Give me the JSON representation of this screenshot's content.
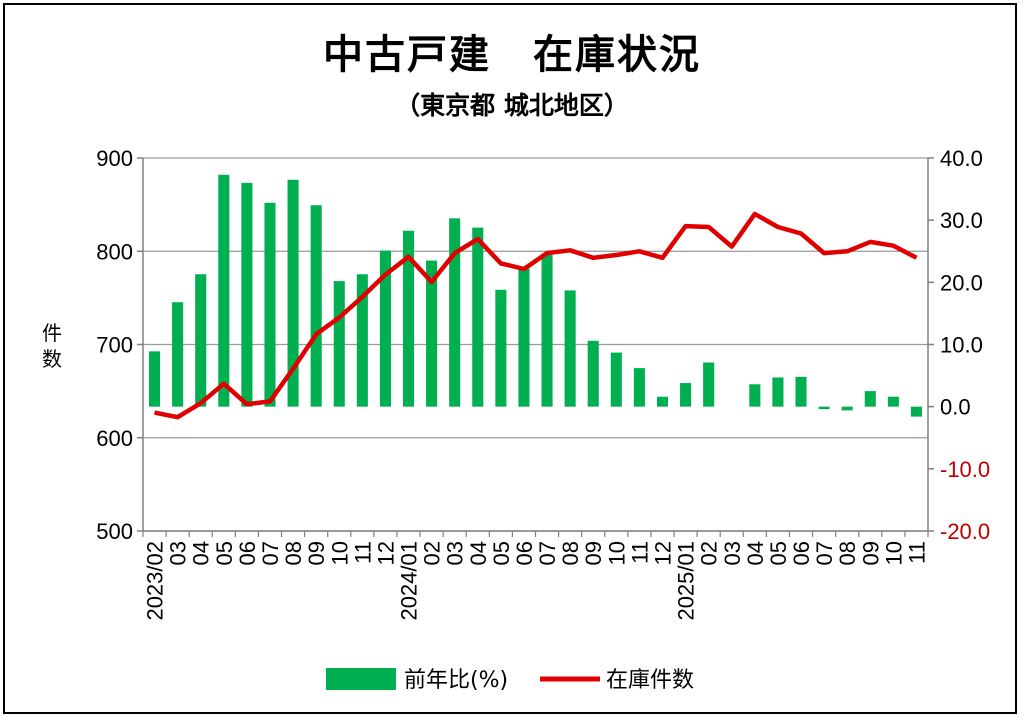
{
  "chart_data": {
    "type": "bar+line",
    "title": "中古戸建　在庫状況",
    "subtitle": "（東京都 城北地区）",
    "left_axis": {
      "label": "件数",
      "ylim": [
        500,
        900
      ],
      "ticks": [
        "500",
        "600",
        "700",
        "800",
        "900"
      ]
    },
    "right_axis": {
      "ylim": [
        -20,
        40
      ],
      "ticks": [
        "-20.0",
        "-10.0",
        "0.0",
        "10.0",
        "20.0",
        "30.0",
        "40.0"
      ]
    },
    "x_labels": [
      "2023/02",
      "03",
      "04",
      "05",
      "06",
      "07",
      "08",
      "09",
      "10",
      "11",
      "12",
      "2024/01",
      "02",
      "03",
      "04",
      "05",
      "06",
      "07",
      "08",
      "09",
      "10",
      "11",
      "12",
      "2025/01",
      "02",
      "03",
      "04",
      "05",
      "06",
      "07",
      "08",
      "09",
      "10",
      "11"
    ],
    "grid": true,
    "legend_position": "bottom",
    "series": [
      {
        "name": "前年比(%)",
        "type": "bar",
        "axis": "right",
        "color": "#00b050",
        "values": [
          8.9,
          16.8,
          21.3,
          37.3,
          36.0,
          32.8,
          36.5,
          32.4,
          20.2,
          21.3,
          25.1,
          28.3,
          23.5,
          30.3,
          28.8,
          18.8,
          22.2,
          24.4,
          18.7,
          10.6,
          8.7,
          6.2,
          1.6,
          3.8,
          7.1,
          0,
          3.6,
          4.7,
          4.8,
          -0.4,
          -0.6,
          2.5,
          1.6,
          -1.6
        ]
      },
      {
        "name": "在庫件数",
        "type": "line",
        "axis": "left",
        "color": "#e00000",
        "values": [
          627,
          622,
          637,
          658,
          636,
          639,
          674,
          711,
          729,
          751,
          775,
          794,
          767,
          798,
          813,
          787,
          781,
          798,
          801,
          793,
          796,
          800,
          793,
          827,
          826,
          805,
          840,
          826,
          819,
          798,
          800,
          810,
          806,
          793
        ]
      }
    ]
  },
  "legend": {
    "bar_label": "前年比(%)",
    "line_label": "在庫件数"
  }
}
